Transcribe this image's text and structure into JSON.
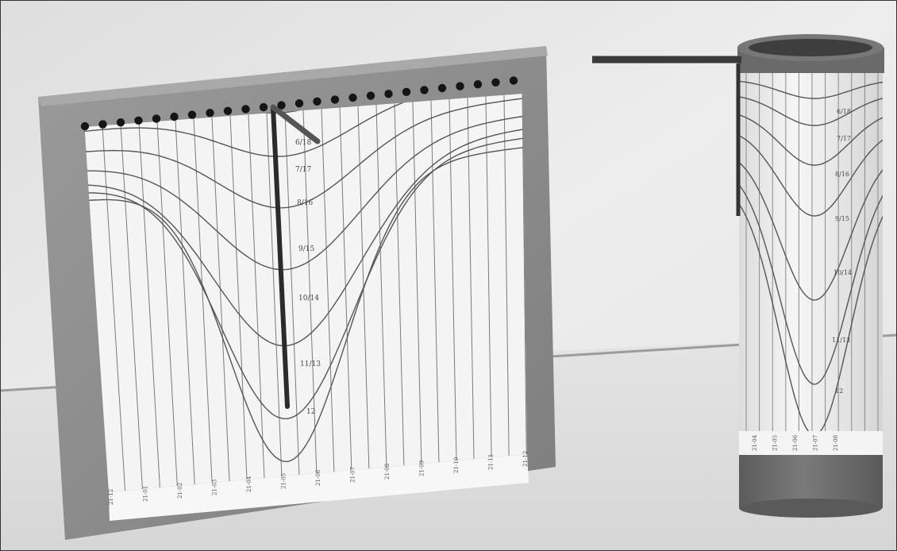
{
  "flat_sundial": {
    "hour_labels": [
      "6/18",
      "7/17",
      "8/16",
      "9/15",
      "10/14",
      "11/13",
      "12"
    ],
    "date_labels": [
      "21-12",
      "21-01",
      "21-02",
      "21-03",
      "21-04",
      "21-05",
      "21-06",
      "21-07",
      "21-08",
      "21-09",
      "21-10",
      "21-11",
      "21-12"
    ]
  },
  "cylinder_sundial": {
    "hour_labels": [
      "6/18",
      "7/17",
      "8/16",
      "9/15",
      "10/14",
      "11/13",
      "12"
    ],
    "date_labels": [
      "21-04",
      "21-05",
      "21-06",
      "21-07",
      "21-08"
    ]
  },
  "colors": {
    "wall": "#e9e9e9",
    "table": "#e2e2e2",
    "wood": "#8d8d8d",
    "paper": "#f4f4f4",
    "ink": "#555555",
    "rod": "#2e2e2e",
    "cylinder_base": "#6e6e6e"
  }
}
